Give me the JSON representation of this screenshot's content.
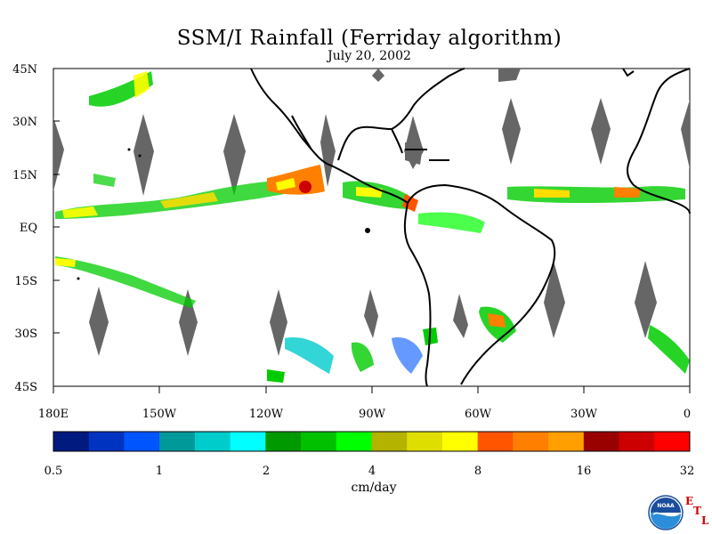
{
  "title": "SSM/I Rainfall (Ferriday algorithm)",
  "subtitle": "July 20, 2002",
  "map": {
    "lon_range": [
      -180,
      0
    ],
    "lat_range": [
      -45,
      45
    ],
    "missing_swath_color": "#666666",
    "coastline_color": "#000000",
    "y_ticks": [
      "45N",
      "30N",
      "15N",
      "EQ",
      "15S",
      "30S",
      "45S"
    ],
    "x_ticks": [
      "180E",
      "150W",
      "120W",
      "90W",
      "60W",
      "30W",
      "0"
    ]
  },
  "colorbar": {
    "unit": "cm/day",
    "tick_labels": [
      "0.5",
      "1",
      "2",
      "4",
      "8",
      "16",
      "32"
    ],
    "colors": [
      "#001a80",
      "#0033bf",
      "#0055ff",
      "#009999",
      "#00cccc",
      "#00ffff",
      "#009900",
      "#00c000",
      "#00ff00",
      "#b3b300",
      "#dede00",
      "#ffff00",
      "#ff5500",
      "#ff8000",
      "#ffa000",
      "#990000",
      "#cc0000",
      "#ff0000"
    ]
  },
  "logo": {
    "name": "NOAA",
    "etl_letters": [
      "E",
      "T",
      "L"
    ]
  }
}
